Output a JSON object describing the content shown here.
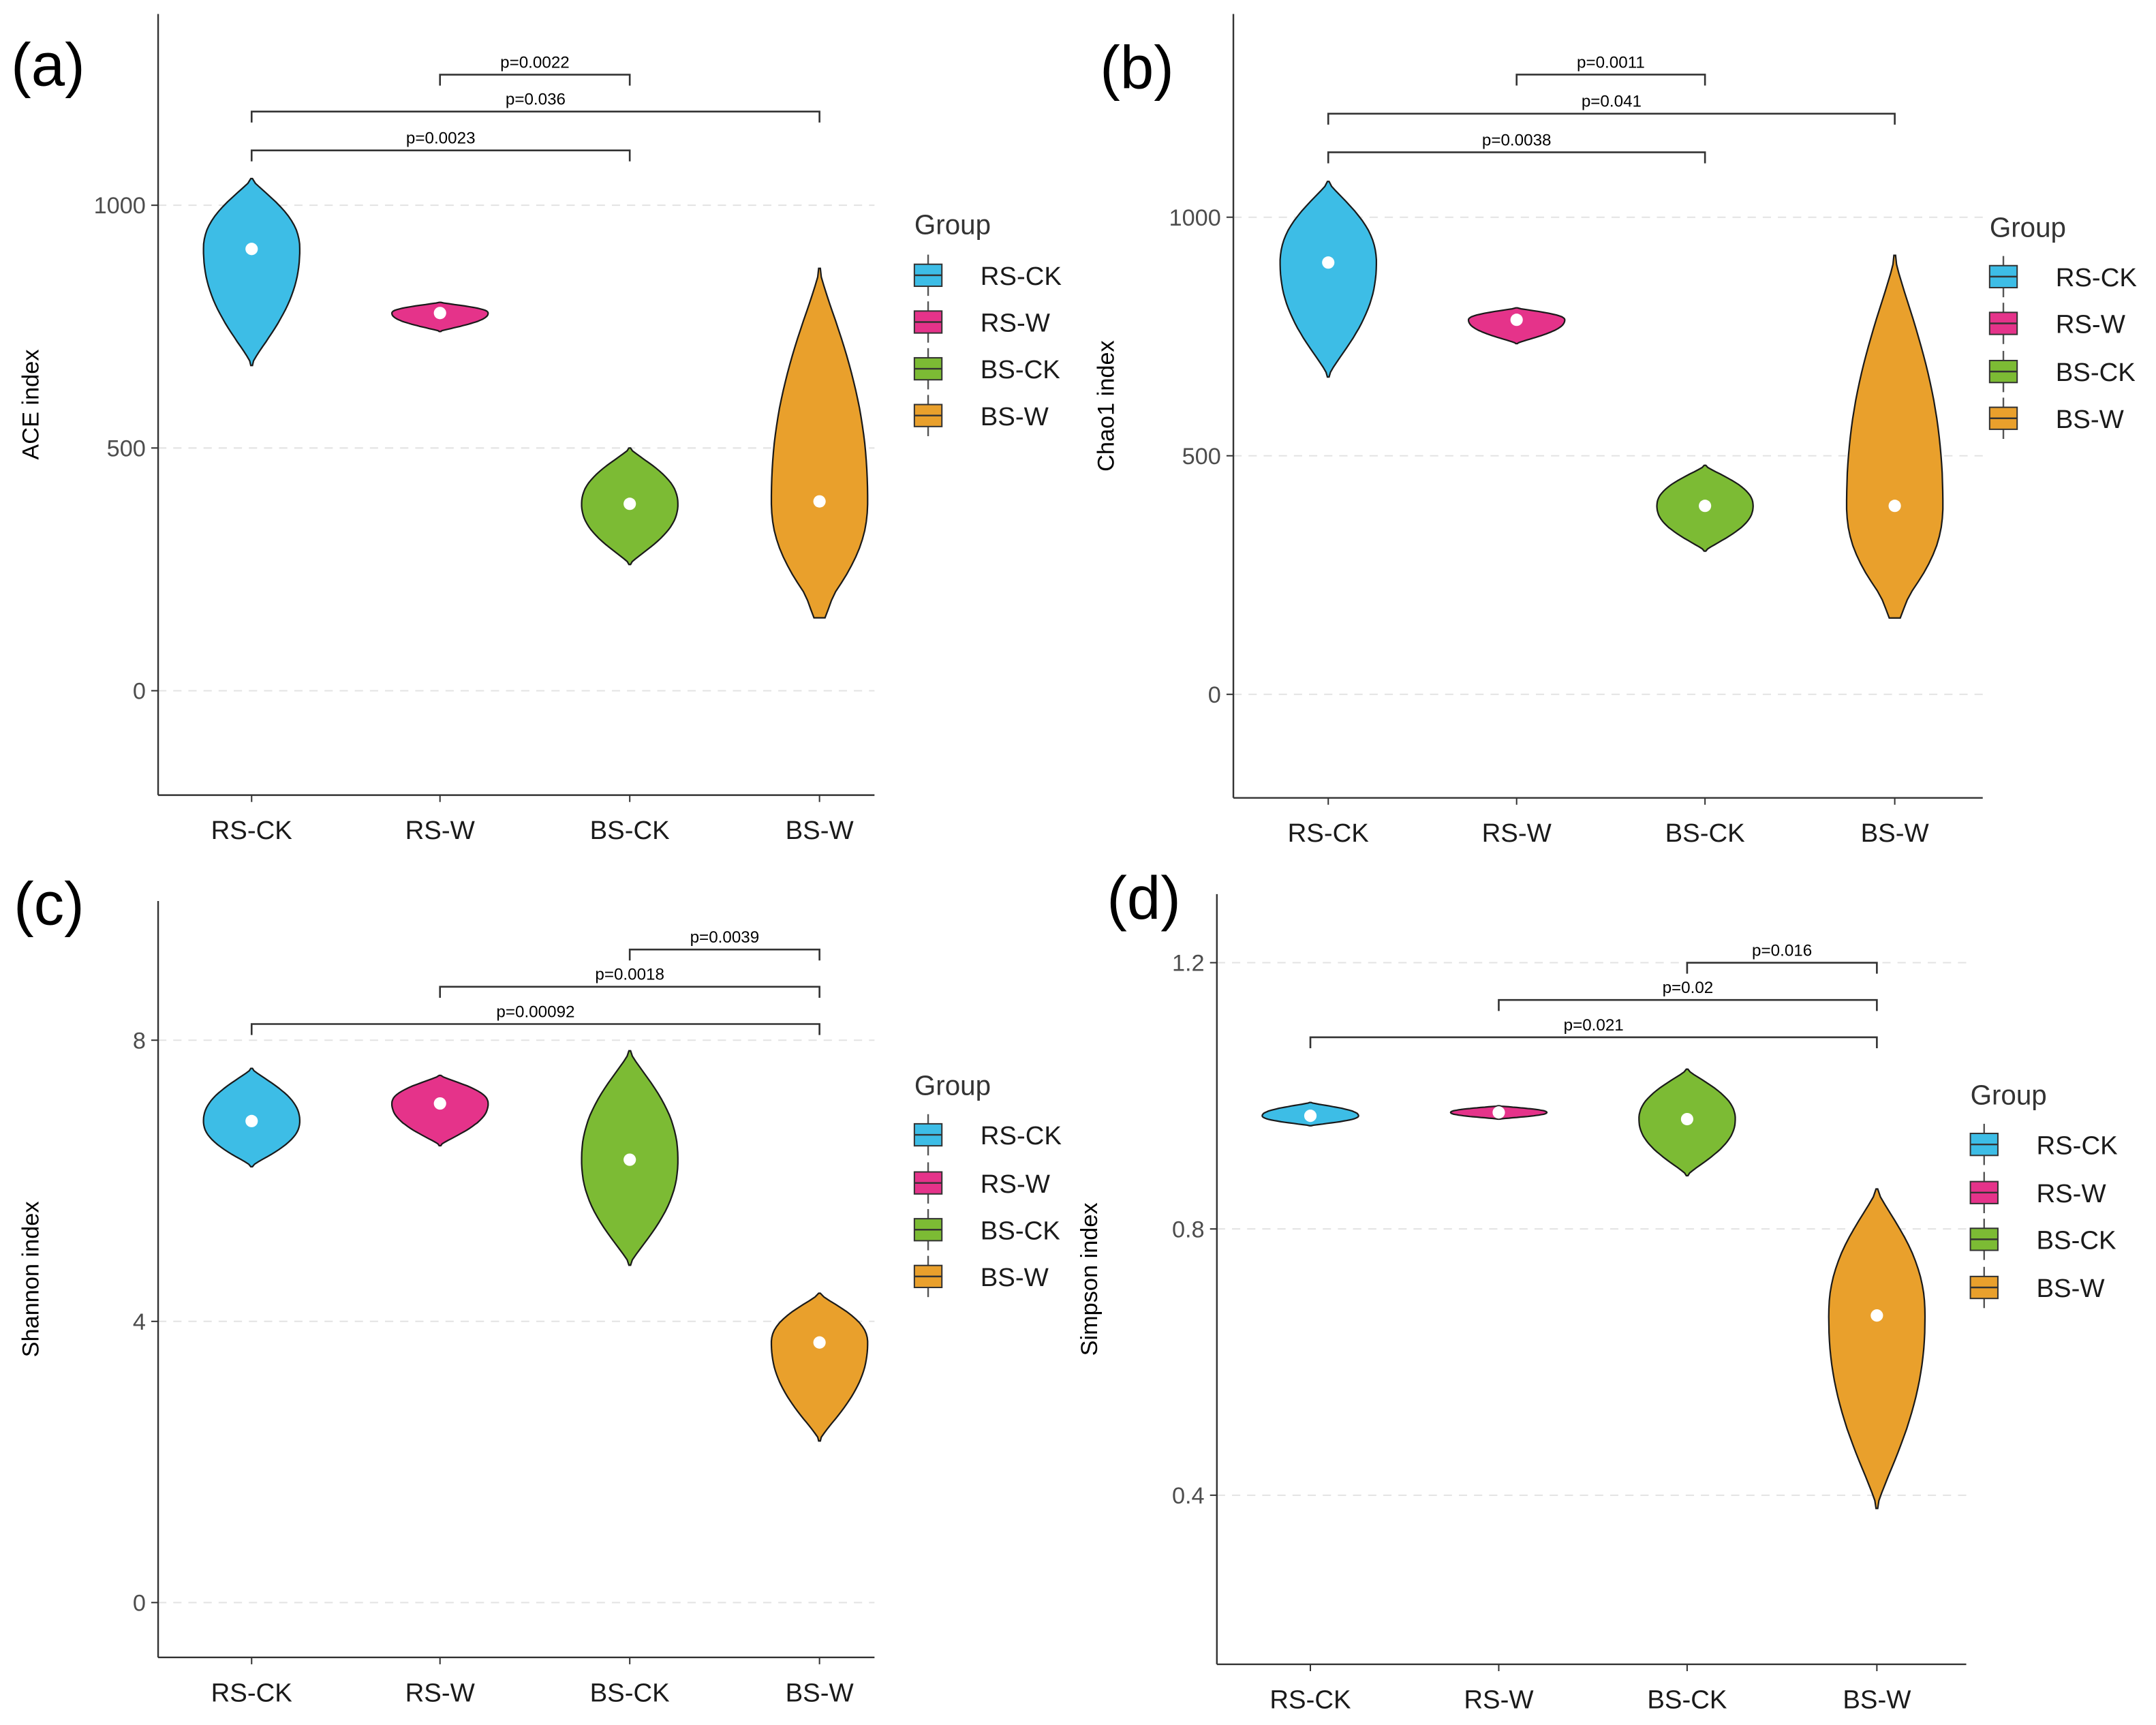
{
  "groups": [
    "RS-CK",
    "RS-W",
    "BS-CK",
    "BS-W"
  ],
  "colors": {
    "RS-CK": "#3dbde6",
    "RS-W": "#e5338a",
    "BS-CK": "#7cbb34",
    "BS-W": "#e9a02c"
  },
  "legend": {
    "title": "Group",
    "placement": "right"
  },
  "chart_data": [
    {
      "panel": "(a)",
      "type": "violin",
      "ylabel": "ACE index",
      "ylim": [
        -215,
        1394
      ],
      "yticks": [
        0,
        500,
        1000
      ],
      "grid": "horizontal dashed",
      "categories": [
        "RS-CK",
        "RS-W",
        "BS-CK",
        "BS-W"
      ],
      "violins": [
        {
          "group": "RS-CK",
          "min": 670,
          "max": 1055,
          "center": 910
        },
        {
          "group": "RS-W",
          "min": 740,
          "max": 800,
          "center": 778
        },
        {
          "group": "BS-CK",
          "min": 260,
          "max": 500,
          "center": 385
        },
        {
          "group": "BS-W",
          "min": 150,
          "max": 870,
          "center": 390
        }
      ],
      "comparisons": [
        {
          "from": "RS-CK",
          "to": "BS-CK",
          "label": "p=0.0023",
          "y": 1113
        },
        {
          "from": "RS-CK",
          "to": "BS-W",
          "label": "p=0.036",
          "y": 1193
        },
        {
          "from": "RS-W",
          "to": "BS-CK",
          "label": "p=0.0022",
          "y": 1269
        }
      ]
    },
    {
      "panel": "(b)",
      "type": "violin",
      "ylabel": "Chao1 index",
      "ylim": [
        -217,
        1426
      ],
      "yticks": [
        0,
        500,
        1000
      ],
      "grid": "horizontal dashed",
      "categories": [
        "RS-CK",
        "RS-W",
        "BS-CK",
        "BS-W"
      ],
      "violins": [
        {
          "group": "RS-CK",
          "min": 665,
          "max": 1075,
          "center": 905
        },
        {
          "group": "RS-W",
          "min": 735,
          "max": 810,
          "center": 785
        },
        {
          "group": "BS-CK",
          "min": 300,
          "max": 480,
          "center": 395
        },
        {
          "group": "BS-W",
          "min": 160,
          "max": 920,
          "center": 395
        }
      ],
      "comparisons": [
        {
          "from": "RS-CK",
          "to": "BS-CK",
          "label": "p=0.0038",
          "y": 1136
        },
        {
          "from": "RS-CK",
          "to": "BS-W",
          "label": "p=0.041",
          "y": 1217
        },
        {
          "from": "RS-W",
          "to": "BS-CK",
          "label": "p=0.0011",
          "y": 1299
        }
      ]
    },
    {
      "panel": "(c)",
      "type": "violin",
      "ylabel": "Shannon index",
      "ylim": [
        -0.78,
        9.98
      ],
      "yticks": [
        0,
        4,
        8
      ],
      "grid": "horizontal dashed",
      "categories": [
        "RS-CK",
        "RS-W",
        "BS-CK",
        "BS-W"
      ],
      "violins": [
        {
          "group": "RS-CK",
          "min": 6.2,
          "max": 7.6,
          "center": 6.85
        },
        {
          "group": "RS-W",
          "min": 6.5,
          "max": 7.5,
          "center": 7.1
        },
        {
          "group": "BS-CK",
          "min": 4.8,
          "max": 7.85,
          "center": 6.3
        },
        {
          "group": "BS-W",
          "min": 2.3,
          "max": 4.4,
          "center": 3.7
        }
      ],
      "comparisons": [
        {
          "from": "RS-CK",
          "to": "BS-W",
          "label": "p=0.00092",
          "y": 8.23
        },
        {
          "from": "RS-W",
          "to": "BS-W",
          "label": "p=0.0018",
          "y": 8.76
        },
        {
          "from": "BS-CK",
          "to": "BS-W",
          "label": "p=0.0039",
          "y": 9.29
        }
      ]
    },
    {
      "panel": "(d)",
      "type": "violin",
      "ylabel": "Simpson index",
      "ylim": [
        0.146,
        1.303
      ],
      "yticks": [
        0.4,
        0.8,
        1.2
      ],
      "grid": "horizontal dashed",
      "categories": [
        "RS-CK",
        "RS-W",
        "BS-CK",
        "BS-W"
      ],
      "violins": [
        {
          "group": "RS-CK",
          "min": 0.955,
          "max": 0.99,
          "center": 0.97
        },
        {
          "group": "RS-W",
          "min": 0.965,
          "max": 0.985,
          "center": 0.975
        },
        {
          "group": "BS-CK",
          "min": 0.88,
          "max": 1.04,
          "center": 0.965
        },
        {
          "group": "BS-W",
          "min": 0.38,
          "max": 0.86,
          "center": 0.67
        }
      ],
      "comparisons": [
        {
          "from": "RS-CK",
          "to": "BS-W",
          "label": "p=0.021",
          "y": 1.088
        },
        {
          "from": "RS-W",
          "to": "BS-W",
          "label": "p=0.02",
          "y": 1.144
        },
        {
          "from": "BS-CK",
          "to": "BS-W",
          "label": "p=0.016",
          "y": 1.2
        }
      ]
    }
  ]
}
